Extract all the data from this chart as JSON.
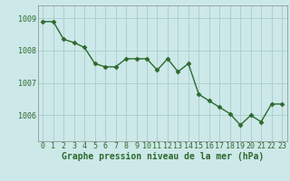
{
  "x": [
    0,
    1,
    2,
    3,
    4,
    5,
    6,
    7,
    8,
    9,
    10,
    11,
    12,
    13,
    14,
    15,
    16,
    17,
    18,
    19,
    20,
    21,
    22,
    23
  ],
  "y": [
    1008.9,
    1008.9,
    1008.35,
    1008.25,
    1008.1,
    1007.6,
    1007.5,
    1007.5,
    1007.75,
    1007.75,
    1007.75,
    1007.4,
    1007.75,
    1007.35,
    1007.6,
    1006.65,
    1006.45,
    1006.25,
    1006.05,
    1005.7,
    1006.0,
    1005.8,
    1006.35,
    1006.35
  ],
  "line_color": "#2d6a2d",
  "marker": "D",
  "marker_size": 2.5,
  "bg_color": "#cce8e8",
  "grid_color": "#aacccc",
  "spine_color": "#888888",
  "xlabel": "Graphe pression niveau de la mer (hPa)",
  "xlabel_fontsize": 7,
  "xlabel_color": "#2d6a2d",
  "yticks": [
    1006,
    1007,
    1008,
    1009
  ],
  "ylim": [
    1005.2,
    1009.4
  ],
  "xlim": [
    -0.5,
    23.5
  ],
  "tick_color": "#2d6a2d",
  "tick_fontsize": 6,
  "linewidth": 1.0
}
